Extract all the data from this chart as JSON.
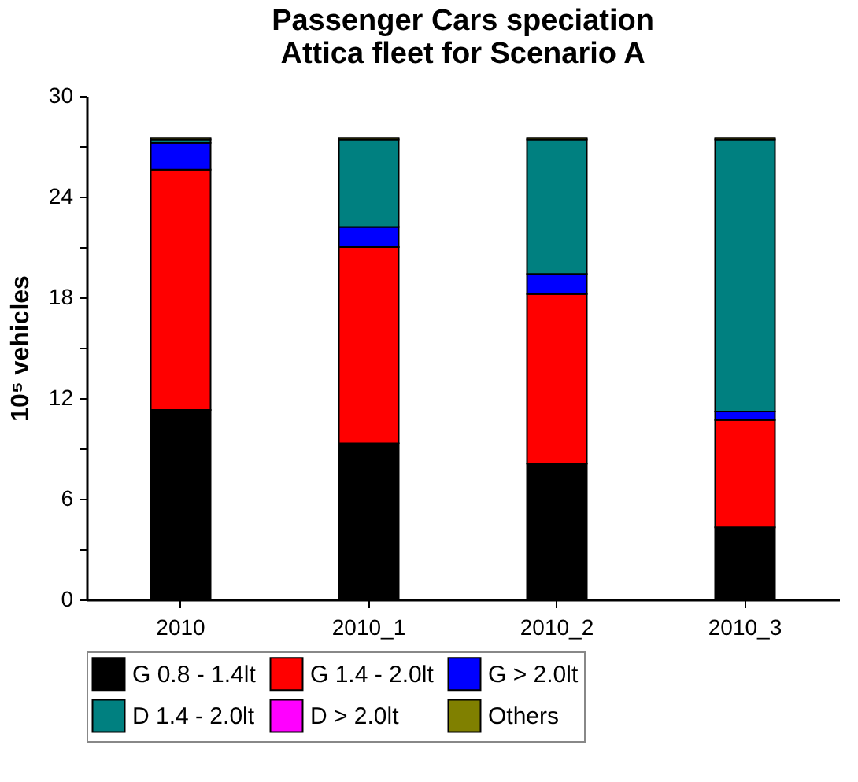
{
  "chart_data": {
    "type": "bar",
    "title": "Passenger Cars speciation\nAttica fleet for Scenario A",
    "ylabel": "10⁵ vehicles",
    "categories": [
      "2010",
      "2010_1",
      "2010_2",
      "2010_3"
    ],
    "stacked": true,
    "series": [
      {
        "name": "G 0.8 - 1.4lt",
        "color": "#000000",
        "values": [
          11.3,
          9.3,
          8.1,
          4.3
        ]
      },
      {
        "name": "G 1.4 - 2.0lt",
        "color": "#ff0000",
        "values": [
          14.3,
          11.7,
          10.1,
          6.4
        ]
      },
      {
        "name": "G > 2.0lt",
        "color": "#0000ff",
        "values": [
          1.6,
          1.2,
          1.2,
          0.5
        ]
      },
      {
        "name": "D 1.4 - 2.0lt",
        "color": "#008080",
        "values": [
          0.2,
          5.2,
          8.0,
          16.2
        ]
      },
      {
        "name": "D > 2.0lt",
        "color": "#ff00ff",
        "values": [
          0,
          0,
          0,
          0
        ]
      },
      {
        "name": "Others",
        "color": "#808000",
        "values": [
          0.1,
          0.1,
          0.1,
          0.1
        ]
      }
    ],
    "ylim": [
      0,
      30
    ],
    "yticks": [
      0,
      {
        "value": 3,
        "label": null
      },
      6,
      {
        "value": 9,
        "label": null
      },
      12,
      {
        "value": 15,
        "label": null
      },
      18,
      {
        "value": 21,
        "label": null
      },
      24,
      {
        "value": 27,
        "label": null
      },
      30
    ],
    "legend": "bottom"
  }
}
